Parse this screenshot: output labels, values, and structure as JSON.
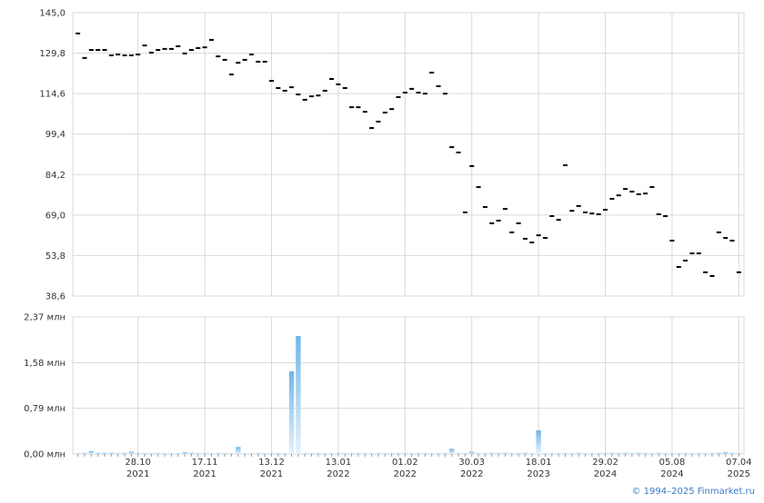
{
  "chart_data": [
    {
      "type": "scatter",
      "marker": "dash",
      "color": "#000000",
      "values": [
        137.2,
        128.0,
        131.0,
        131.0,
        131.0,
        129.0,
        129.3,
        129.0,
        129.0,
        129.3,
        132.7,
        130.0,
        131.0,
        131.4,
        131.4,
        132.4,
        129.7,
        131.0,
        131.7,
        132.0,
        134.8,
        128.6,
        127.3,
        121.8,
        126.2,
        127.3,
        129.3,
        126.6,
        126.6,
        119.4,
        116.7,
        115.7,
        117.0,
        114.3,
        112.3,
        113.6,
        113.9,
        115.7,
        120.1,
        118.1,
        116.7,
        109.5,
        109.5,
        107.8,
        101.7,
        104.1,
        107.5,
        108.8,
        113.3,
        115.0,
        116.4,
        115.0,
        114.6,
        122.5,
        117.4,
        114.6,
        94.5,
        92.5,
        70.0,
        87.4,
        79.5,
        72.0,
        65.9,
        66.9,
        71.3,
        62.5,
        65.9,
        60.1,
        58.7,
        61.4,
        60.4,
        68.6,
        67.2,
        87.7,
        70.6,
        72.4,
        70.0,
        69.6,
        69.3,
        71.0,
        75.1,
        76.4,
        78.8,
        77.8,
        76.8,
        77.1,
        79.5,
        69.3,
        68.6,
        59.4,
        49.5,
        51.9,
        54.6,
        54.6,
        47.5,
        46.1,
        62.5,
        60.4,
        59.4,
        47.5
      ],
      "ylim": [
        38.6,
        145.0
      ],
      "yticks": [
        {
          "value": 38.6,
          "label": "38,6"
        },
        {
          "value": 53.8,
          "label": "53,8"
        },
        {
          "value": 69.0,
          "label": "69,0"
        },
        {
          "value": 84.2,
          "label": "84,2"
        },
        {
          "value": 99.4,
          "label": "99,4"
        },
        {
          "value": 114.6,
          "label": "114,6"
        },
        {
          "value": 129.8,
          "label": "129,8"
        },
        {
          "value": 145.0,
          "label": "145,0"
        }
      ],
      "grid": true
    },
    {
      "type": "bar",
      "color": "#6fb6ea",
      "categories": [
        null,
        null,
        null,
        null,
        null,
        null,
        null,
        null,
        null,
        "28.10\n2021",
        null,
        null,
        null,
        null,
        null,
        null,
        null,
        null,
        null,
        "17.11\n2021",
        null,
        null,
        null,
        null,
        null,
        null,
        null,
        null,
        null,
        "13.12\n2021",
        null,
        null,
        null,
        null,
        null,
        null,
        null,
        null,
        null,
        "13.01\n2022",
        null,
        null,
        null,
        null,
        null,
        null,
        null,
        null,
        null,
        "01.02\n2022",
        null,
        null,
        null,
        null,
        null,
        null,
        null,
        null,
        null,
        "30.03\n2022",
        null,
        null,
        null,
        null,
        null,
        null,
        null,
        null,
        null,
        "18.01\n2023",
        null,
        null,
        null,
        null,
        null,
        null,
        null,
        null,
        null,
        "29.02\n2024",
        null,
        null,
        null,
        null,
        null,
        null,
        null,
        null,
        null,
        "05.08\n2024",
        null,
        null,
        null,
        null,
        null,
        null,
        null,
        null,
        null,
        "07.04\n2025"
      ],
      "values": [
        0.01,
        0.02,
        0.05,
        0.02,
        0.02,
        0.02,
        0.01,
        0.02,
        0.04,
        0.01,
        0.01,
        0.01,
        0.01,
        0.01,
        0.01,
        0.01,
        0.03,
        0.02,
        0.01,
        0.01,
        0.01,
        0.01,
        0.01,
        0.01,
        0.12,
        0.01,
        0.01,
        0.01,
        0.01,
        0.01,
        0.01,
        0.01,
        1.43,
        2.04,
        0.01,
        0.01,
        0.01,
        0.01,
        0.01,
        0.01,
        0.01,
        0.01,
        0.01,
        0.01,
        0.01,
        0.01,
        0.01,
        0.01,
        0.01,
        0.01,
        0.01,
        0.01,
        0.01,
        0.01,
        0.01,
        0.01,
        0.09,
        0.01,
        0.01,
        0.04,
        0.01,
        0.01,
        0.02,
        0.01,
        0.02,
        0.01,
        0.01,
        0.02,
        0.01,
        0.41,
        0.01,
        0.01,
        0.01,
        0.01,
        0.01,
        0.02,
        0.01,
        0.01,
        0.01,
        0.01,
        0.02,
        0.01,
        0.02,
        0.01,
        0.02,
        0.01,
        0.01,
        0.02,
        0.01,
        0.01,
        0.01,
        0.01,
        0.01,
        0.01,
        0.01,
        0.01,
        0.02,
        0.03,
        0.02,
        0.01
      ],
      "ylim": [
        0,
        2.37
      ],
      "yticks": [
        {
          "value": 0,
          "label": "0,00 млн"
        },
        {
          "value": 0.79,
          "label": "0,79 млн"
        },
        {
          "value": 1.58,
          "label": "1,58 млн"
        },
        {
          "value": 2.37,
          "label": "2,37 млн"
        }
      ],
      "grid": true
    }
  ],
  "footer": "© 1994–2025 Finmarket.ru"
}
